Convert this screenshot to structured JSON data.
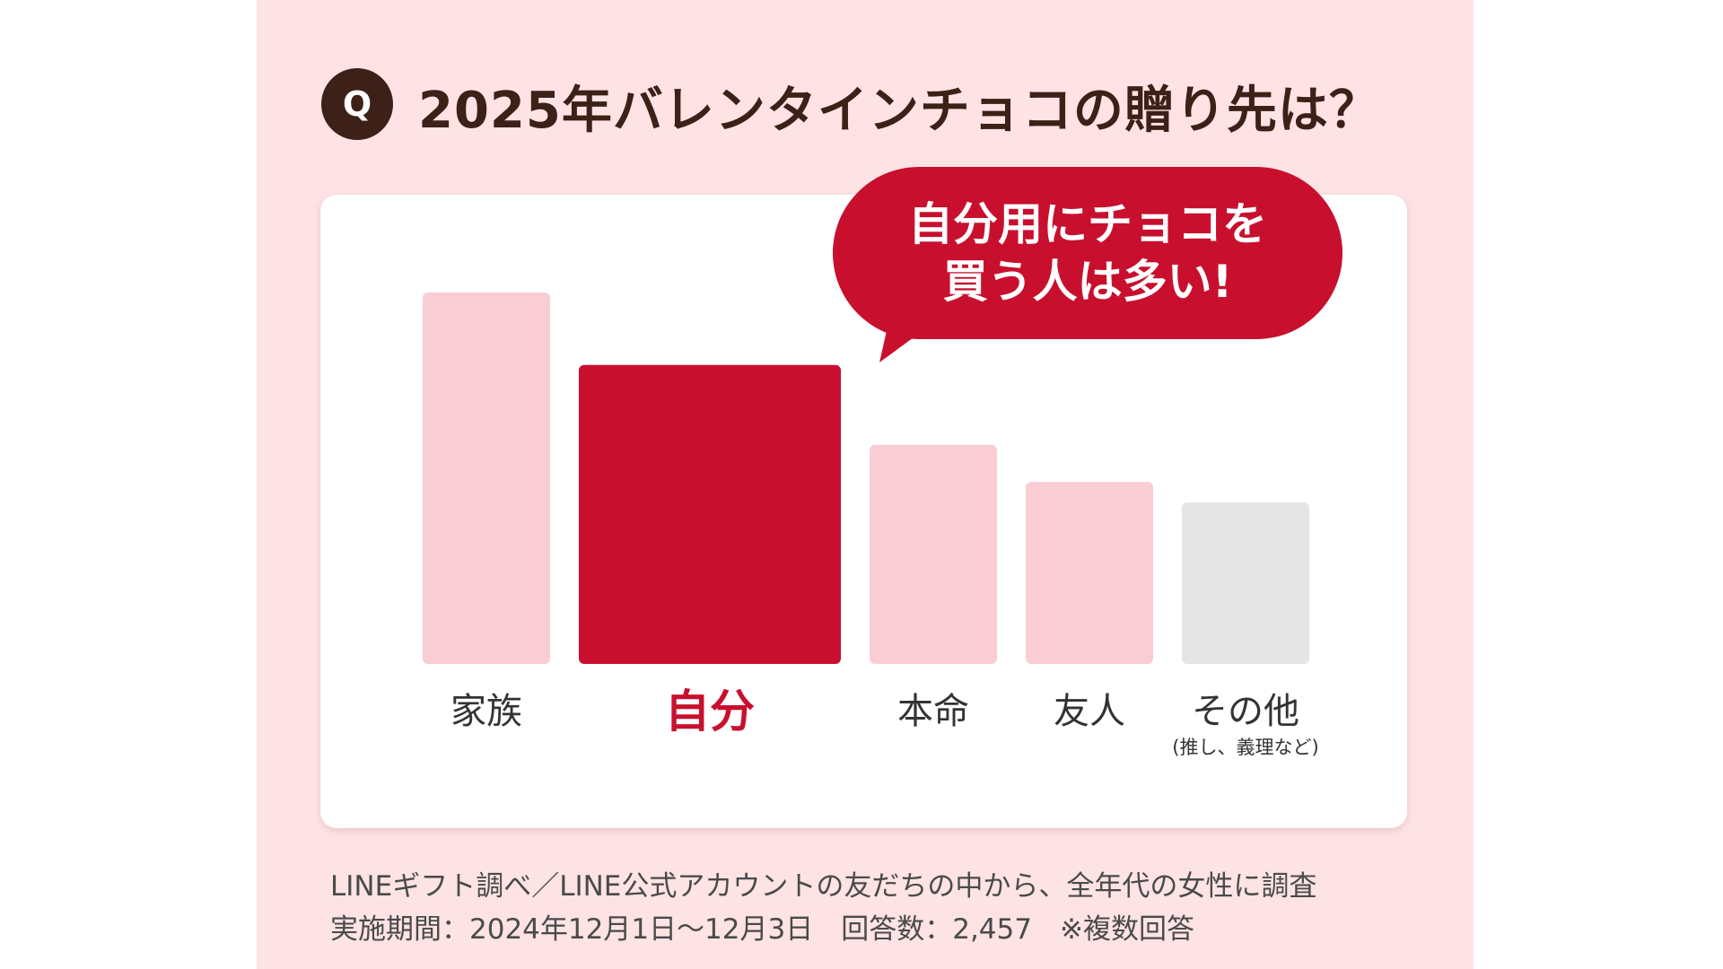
{
  "header": {
    "badge": "Q",
    "title": "2025年バレンタインチョコの贈り先は？"
  },
  "bubble": {
    "line1": "自分用にチョコを",
    "line2": "買う人は多い!"
  },
  "footnote": {
    "line1": "LINEギフト調べ／LINE公式アカウントの友だちの中から、全年代の女性に調査",
    "line2": "実施期間：2024年12月1日〜12月3日　回答数：2,457　※複数回答"
  },
  "colors": {
    "background": "#fde3e4",
    "bar_default": "#f9cdd3",
    "bar_highlight": "#c8102e",
    "bar_other": "#e5e5e5",
    "title": "#3d2017"
  },
  "chart_data": {
    "type": "bar",
    "title": "2025年バレンタインチョコの贈り先は？",
    "xlabel": "",
    "ylabel": "",
    "categories": [
      "家族",
      "自分",
      "本命",
      "友人",
      "その他"
    ],
    "sub_labels": [
      "",
      "",
      "",
      "",
      "(推し、義理など)"
    ],
    "values": [
      100,
      80.5,
      59,
      49,
      43.5
    ],
    "highlight": "自分",
    "ylim": [
      0,
      100
    ],
    "grid": false,
    "legend": "none"
  }
}
